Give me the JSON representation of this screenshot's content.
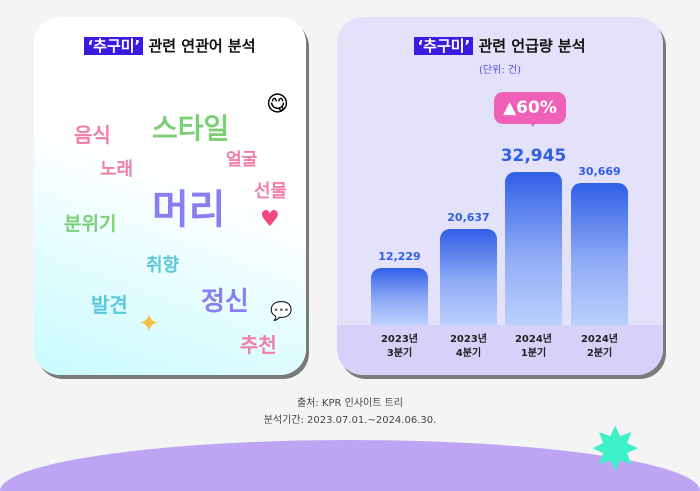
{
  "left_card": {
    "title_highlight": "‘추구미’",
    "title_rest": " 관련 연관어 분석",
    "words": [
      {
        "text": "스타일",
        "color": "#7ccf74"
      },
      {
        "text": "음식",
        "color": "#f27ea4"
      },
      {
        "text": "노래",
        "color": "#f27ea4"
      },
      {
        "text": "얼굴",
        "color": "#f27ea4"
      },
      {
        "text": "선물",
        "color": "#f27ea4"
      },
      {
        "text": "머리",
        "color": "#8a7ef0"
      },
      {
        "text": "분위기",
        "color": "#7ccf74"
      },
      {
        "text": "취향",
        "color": "#5cc8dc"
      },
      {
        "text": "발견",
        "color": "#5cc8dc"
      },
      {
        "text": "정신",
        "color": "#8a7ef0"
      },
      {
        "text": "추천",
        "color": "#f27ea4"
      }
    ]
  },
  "chart_data": {
    "type": "bar",
    "title_highlight": "‘추구미’",
    "title_rest": " 관련 언급량 분석",
    "unit": "(단위: 건)",
    "categories": [
      "2023년\n3분기",
      "2023년\n4분기",
      "2024년\n1분기",
      "2024년\n2분기"
    ],
    "values": [
      12229,
      20637,
      32945,
      30669
    ],
    "value_labels": [
      "12,229",
      "20,637",
      "32,945",
      "30,669"
    ],
    "annotation": {
      "text": "▲60%",
      "category_index": 2,
      "color": "#f060b8"
    },
    "bar_color": "#2f5fe6"
  },
  "footer": {
    "source": "출처: KPR 인사이트 트리",
    "period": "분석기간: 2023.07.01.~2024.06.30."
  }
}
